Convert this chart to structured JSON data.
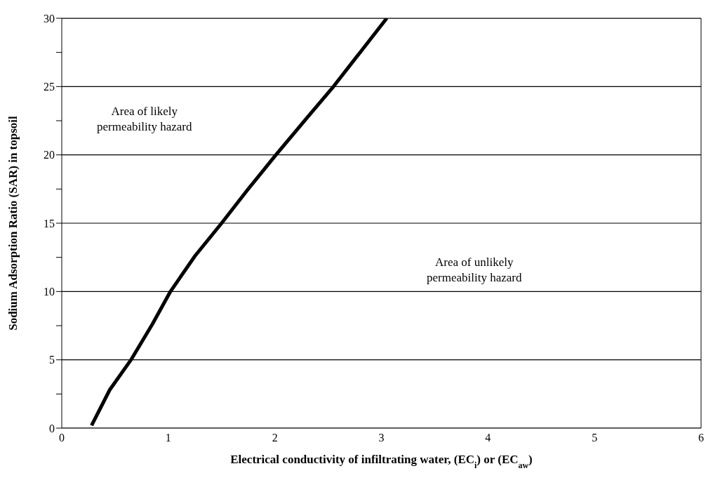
{
  "chart_data": {
    "type": "line",
    "xlabel": "Electrical conductivity of infiltrating water, (EC$_{i}$) or (EC$_{aw}$)",
    "ylabel": "Sodium Adsorption Ratio (SAR) in topsoil",
    "x": [
      0.28,
      0.45,
      0.65,
      0.85,
      1.02,
      1.25,
      1.5,
      1.75,
      2.01,
      2.3,
      2.55,
      2.8,
      3.05
    ],
    "series": [
      {
        "color": "#000000",
        "values": [
          0.2,
          2.8,
          5,
          7.6,
          10,
          12.6,
          15,
          17.5,
          20,
          22.7,
          25,
          27.5,
          30
        ]
      }
    ],
    "xlim": [
      0,
      6
    ],
    "xticks": [
      0,
      1,
      2,
      3,
      4,
      5,
      6
    ],
    "ylim": [
      0,
      30
    ],
    "yticks": [
      0,
      {
        "value": 2.5,
        "label": null
      },
      5,
      {
        "value": 7.5,
        "label": null
      },
      10,
      {
        "value": 12.5,
        "label": null
      },
      15,
      {
        "value": 17.5,
        "label": null
      },
      20,
      {
        "value": 22.5,
        "label": null
      },
      25,
      {
        "value": 27.5,
        "label": null
      },
      30
    ],
    "grid": "y",
    "marker": "none",
    "line_style": "solid",
    "annotations": [
      "Area of likely\npermeability hazard",
      "Area of unlikely\npermeability hazard"
    ]
  }
}
